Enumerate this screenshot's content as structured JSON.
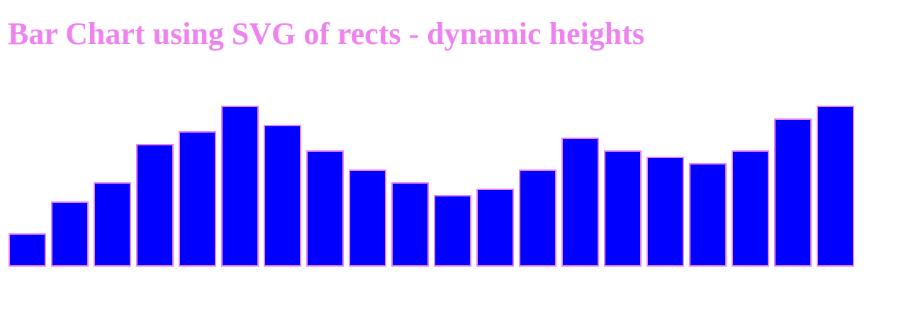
{
  "page": {
    "title": "Bar Chart using SVG of rects - dynamic heights"
  },
  "colors": {
    "title": "#ee82ee",
    "bar_fill": "#0000ff",
    "bar_stroke": "#ee82ee",
    "background": "#ffffff"
  },
  "chart_data": {
    "type": "bar",
    "title": "Bar Chart using SVG of rects - dynamic heights",
    "xlabel": "",
    "ylabel": "",
    "values": [
      5,
      10,
      13,
      19,
      21,
      25,
      22,
      18,
      15,
      13,
      11,
      12,
      15,
      20,
      18,
      17,
      16,
      18,
      23,
      25
    ],
    "ylim": [
      0,
      25
    ],
    "grid": false,
    "axes_visible": false,
    "legend": "none"
  }
}
